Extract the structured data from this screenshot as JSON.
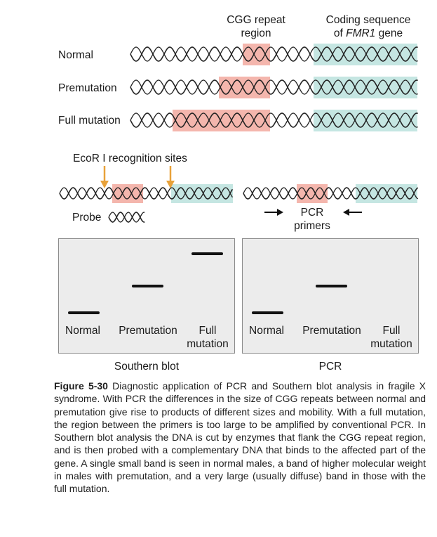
{
  "top_labels": {
    "cgg_region": [
      "CGG repeat",
      "region"
    ],
    "coding_seq_line1": "Coding sequence",
    "coding_seq_prefix": "of ",
    "coding_seq_gene": "FMR1",
    "coding_seq_suffix": " gene"
  },
  "rows": [
    {
      "label": "Normal",
      "repeat": "normal"
    },
    {
      "label": "Premutation",
      "repeat": "premutation"
    },
    {
      "label": "Full mutation",
      "repeat": "full"
    }
  ],
  "ecor_label": "EcoR I recognition sites",
  "probe_label": "Probe",
  "pcr_primers": [
    "PCR",
    "primers"
  ],
  "colors": {
    "repeat_region": "#f4b6ad",
    "coding_region": "#c5e6e2",
    "dna_strand": "#222222",
    "arrow": "#e8a23a",
    "panel_bg": "#ececec"
  },
  "southern_blot": {
    "title": "Southern blot",
    "lanes": [
      {
        "label": [
          "Normal"
        ],
        "band": "normal"
      },
      {
        "label": [
          "Premutation"
        ],
        "band": "premutation"
      },
      {
        "label": [
          "Full",
          "mutation"
        ],
        "band": "full"
      }
    ]
  },
  "pcr": {
    "title": "PCR",
    "lanes": [
      {
        "label": [
          "Normal"
        ],
        "band": "normal"
      },
      {
        "label": [
          "Premutation"
        ],
        "band": "premutation"
      },
      {
        "label": [
          "Full",
          "mutation"
        ],
        "band": "none"
      }
    ]
  },
  "caption": {
    "figure_label": "Figure 5-30",
    "text": "Diagnostic application of PCR and Southern blot analysis in fragile X syndrome. With PCR the differences in the size of CGG repeats between normal and premutation give rise to products of different sizes and mobility. With a full mutation, the region between the primers is too large to be amplified by conventional PCR. In Southern blot analysis the DNA is cut by enzymes that flank the CGG repeat region, and is then probed with a complementary DNA that binds to the affected part of the gene. A single small band is seen in normal males, a band of higher molecular weight in males with premutation, and a very large (usually diffuse) band in those with the full mutation."
  }
}
